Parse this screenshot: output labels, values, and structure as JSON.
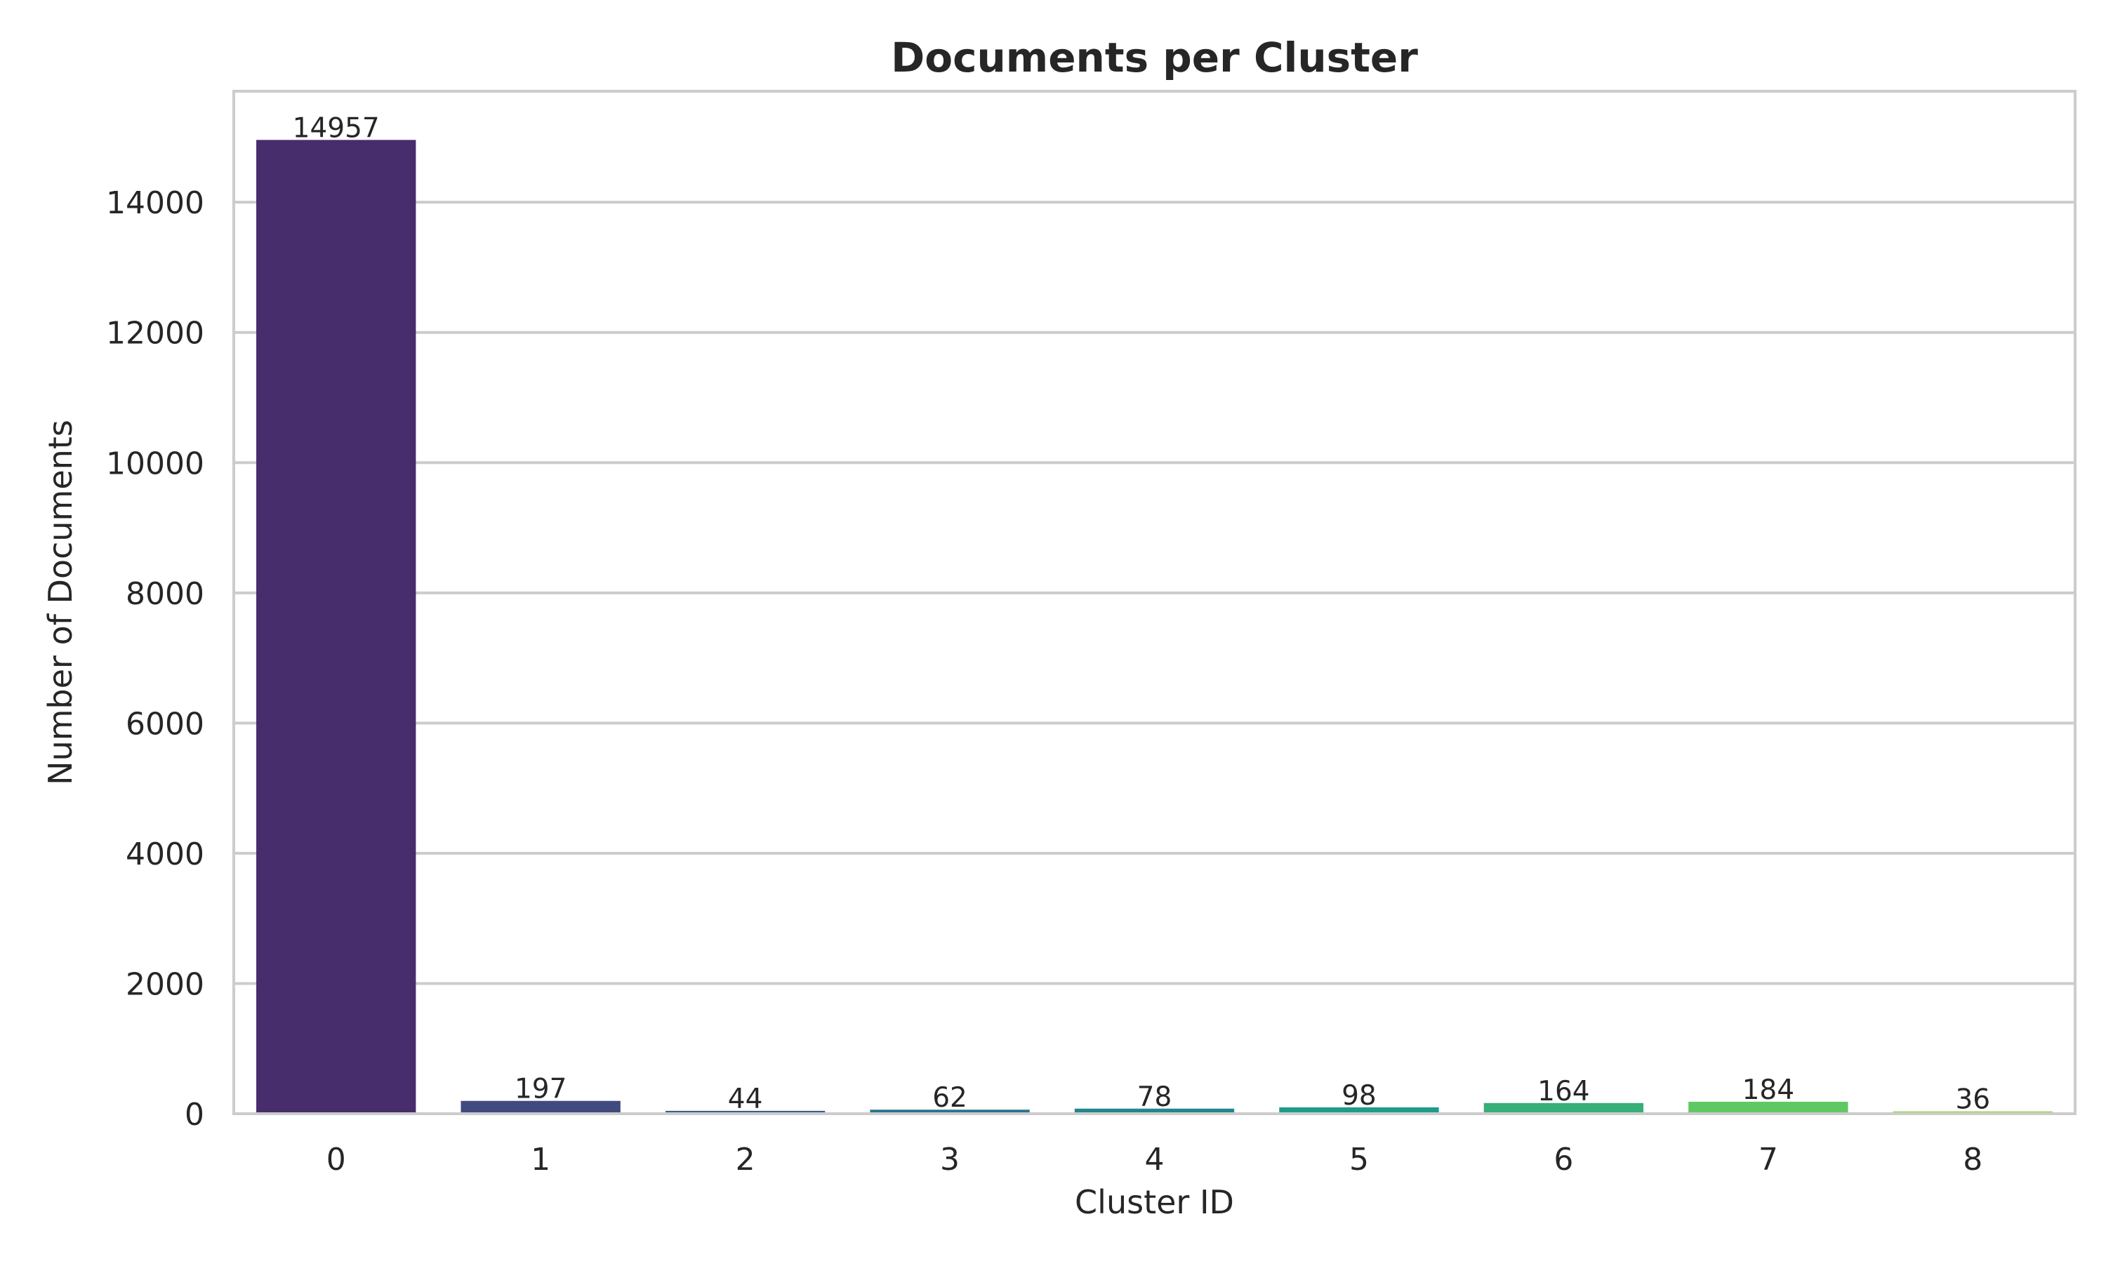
{
  "chart_data": {
    "type": "bar",
    "title": "Documents per Cluster",
    "xlabel": "Cluster ID",
    "ylabel": "Number of Documents",
    "categories": [
      "0",
      "1",
      "2",
      "3",
      "4",
      "5",
      "6",
      "7",
      "8"
    ],
    "values": [
      14957,
      197,
      44,
      62,
      78,
      98,
      164,
      184,
      36
    ],
    "colors": [
      "#472d6b",
      "#414a7f",
      "#355f8d",
      "#2b738e",
      "#22878d",
      "#1e9b8a",
      "#38ae79",
      "#5ec962",
      "#90d743"
    ],
    "ylim": [
      0,
      15705
    ],
    "yticks": [
      0,
      2000,
      4000,
      6000,
      8000,
      10000,
      12000,
      14000
    ],
    "ytick_labels": [
      "0",
      "2000",
      "4000",
      "6000",
      "8000",
      "10000",
      "12000",
      "14000"
    ],
    "grid": true,
    "bar_labels": [
      "14957",
      "197",
      "44",
      "62",
      "78",
      "98",
      "164",
      "184",
      "36"
    ]
  }
}
